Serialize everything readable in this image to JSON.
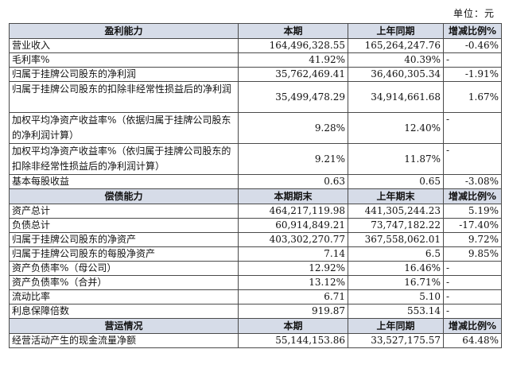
{
  "unit": "单位：元",
  "sections": [
    {
      "headers": [
        "盈利能力",
        "本期",
        "上年同期",
        "增减比例%"
      ],
      "rows": [
        {
          "label": "营业收入",
          "current": "164,496,328.55",
          "prior": "165,264,247.76",
          "change": "-0.46%"
        },
        {
          "label": "毛利率%",
          "current": "41.92%",
          "prior": "40.39%",
          "change": "-"
        },
        {
          "label": "归属于挂牌公司股东的净利润",
          "current": "35,762,469.41",
          "prior": "36,460,305.34",
          "change": "-1.91%"
        },
        {
          "label": "归属于挂牌公司股东的扣除非经常性损益后的净利润",
          "current": "35,499,478.29",
          "prior": "34,914,661.68",
          "change": "1.67%"
        },
        {
          "label": "加权平均净资产收益率%（依据归属于挂牌公司股东的净利润计算）",
          "current": "9.28%",
          "prior": "12.40%",
          "change": "-"
        },
        {
          "label": "加权平均净资产收益率%（依归属于挂牌公司股东的扣除非经常性损益后的净利润计算）",
          "current": "9.21%",
          "prior": "11.87%",
          "change": "-"
        },
        {
          "label": "基本每股收益",
          "current": "0.63",
          "prior": "0.65",
          "change": "-3.08%"
        }
      ]
    },
    {
      "headers": [
        "偿债能力",
        "本期期末",
        "上年期末",
        "增减比例%"
      ],
      "rows": [
        {
          "label": "资产总计",
          "current": "464,217,119.98",
          "prior": "441,305,244.23",
          "change": "5.19%"
        },
        {
          "label": "负债总计",
          "current": "60,914,849.21",
          "prior": "73,747,182.22",
          "change": "-17.40%"
        },
        {
          "label": "归属于挂牌公司股东的净资产",
          "current": "403,302,270.77",
          "prior": "367,558,062.01",
          "change": "9.72%"
        },
        {
          "label": "归属于挂牌公司股东的每股净资产",
          "current": "7.14",
          "prior": "6.5",
          "change": "9.85%"
        },
        {
          "label": "资产负债率%（母公司）",
          "current": "12.92%",
          "prior": "16.46%",
          "change": "-"
        },
        {
          "label": "资产负债率%（合并）",
          "current": "13.12%",
          "prior": "16.71%",
          "change": "-"
        },
        {
          "label": "流动比率",
          "current": "6.71",
          "prior": "5.10",
          "change": "-"
        },
        {
          "label": "利息保障倍数",
          "current": "919.87",
          "prior": "553.14",
          "change": "-"
        }
      ]
    },
    {
      "headers": [
        "营运情况",
        "本期",
        "上年同期",
        "增减比例%"
      ],
      "rows": [
        {
          "label": "经营活动产生的现金流量净额",
          "current": "55,144,153.86",
          "prior": "33,527,175.57",
          "change": "64.48%"
        }
      ]
    }
  ]
}
